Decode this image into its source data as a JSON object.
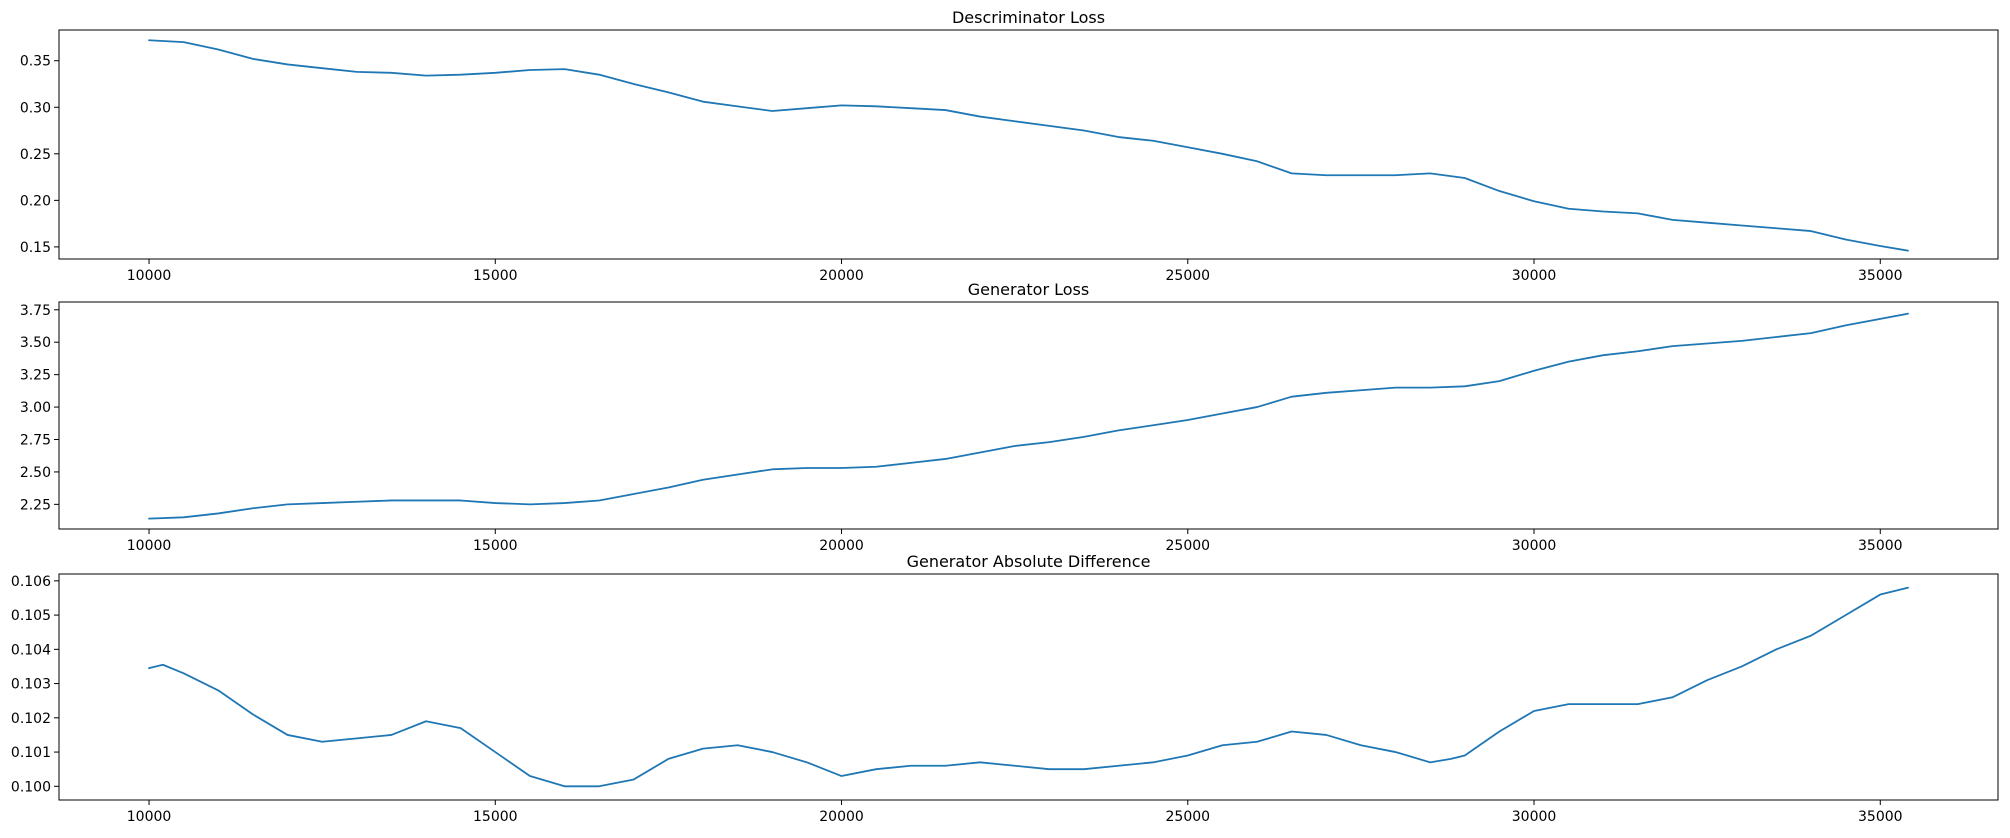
{
  "colors": {
    "series": "#1f77b4",
    "axes": "#000000",
    "background": "#ffffff"
  },
  "chart_data": [
    {
      "type": "line",
      "title": "Descriminator Loss",
      "xlabel": "",
      "ylabel": "",
      "xlim": [
        8700,
        36700
      ],
      "ylim": [
        0.137,
        0.383
      ],
      "xticks": [
        10000,
        15000,
        20000,
        25000,
        30000,
        35000
      ],
      "xtick_labels": [
        "10000",
        "15000",
        "20000",
        "25000",
        "30000",
        "35000"
      ],
      "yticks": [
        0.15,
        0.2,
        0.25,
        0.3,
        0.35
      ],
      "ytick_labels": [
        "0.15",
        "0.20",
        "0.25",
        "0.30",
        "0.35"
      ],
      "grid": false,
      "legend": "none",
      "series": [
        {
          "x": [
            10000,
            10500,
            11000,
            11500,
            12000,
            12500,
            13000,
            13500,
            14000,
            14500,
            15000,
            15500,
            16000,
            16500,
            17000,
            17500,
            18000,
            18500,
            19000,
            19500,
            20000,
            20500,
            21000,
            21500,
            22000,
            22500,
            23000,
            23500,
            24000,
            24500,
            25000,
            25500,
            26000,
            26500,
            27000,
            27500,
            28000,
            28500,
            29000,
            29500,
            30000,
            30500,
            31000,
            31500,
            32000,
            32500,
            33000,
            33500,
            34000,
            34500,
            35000,
            35400
          ],
          "values": [
            0.372,
            0.37,
            0.362,
            0.352,
            0.346,
            0.342,
            0.338,
            0.337,
            0.334,
            0.335,
            0.337,
            0.34,
            0.341,
            0.335,
            0.325,
            0.316,
            0.306,
            0.301,
            0.296,
            0.299,
            0.302,
            0.301,
            0.299,
            0.297,
            0.29,
            0.285,
            0.28,
            0.275,
            0.268,
            0.264,
            0.257,
            0.25,
            0.242,
            0.229,
            0.227,
            0.227,
            0.227,
            0.229,
            0.224,
            0.21,
            0.199,
            0.191,
            0.188,
            0.186,
            0.179,
            0.176,
            0.173,
            0.17,
            0.167,
            0.158,
            0.151,
            0.146
          ]
        }
      ]
    },
    {
      "type": "line",
      "title": "Generator Loss",
      "xlabel": "",
      "ylabel": "",
      "xlim": [
        8700,
        36700
      ],
      "ylim": [
        2.06,
        3.81
      ],
      "xticks": [
        10000,
        15000,
        20000,
        25000,
        30000,
        35000
      ],
      "xtick_labels": [
        "10000",
        "15000",
        "20000",
        "25000",
        "30000",
        "35000"
      ],
      "yticks": [
        2.25,
        2.5,
        2.75,
        3.0,
        3.25,
        3.5,
        3.75
      ],
      "ytick_labels": [
        "2.25",
        "2.50",
        "2.75",
        "3.00",
        "3.25",
        "3.50",
        "3.75"
      ],
      "grid": false,
      "legend": "none",
      "series": [
        {
          "x": [
            10000,
            10500,
            11000,
            11500,
            12000,
            12500,
            13000,
            13500,
            14000,
            14500,
            15000,
            15500,
            16000,
            16500,
            17000,
            17500,
            18000,
            18500,
            19000,
            19500,
            20000,
            20500,
            21000,
            21500,
            22000,
            22500,
            23000,
            23500,
            24000,
            24500,
            25000,
            25500,
            26000,
            26500,
            27000,
            27500,
            28000,
            28500,
            29000,
            29500,
            30000,
            30500,
            31000,
            31500,
            32000,
            32500,
            33000,
            33500,
            34000,
            34500,
            35000,
            35400
          ],
          "values": [
            2.14,
            2.15,
            2.18,
            2.22,
            2.25,
            2.26,
            2.27,
            2.28,
            2.28,
            2.28,
            2.26,
            2.25,
            2.26,
            2.28,
            2.33,
            2.38,
            2.44,
            2.48,
            2.52,
            2.53,
            2.53,
            2.54,
            2.57,
            2.6,
            2.65,
            2.7,
            2.73,
            2.77,
            2.82,
            2.86,
            2.9,
            2.95,
            3.0,
            3.08,
            3.11,
            3.13,
            3.15,
            3.15,
            3.16,
            3.2,
            3.28,
            3.35,
            3.4,
            3.43,
            3.47,
            3.49,
            3.51,
            3.54,
            3.57,
            3.63,
            3.68,
            3.72
          ]
        }
      ]
    },
    {
      "type": "line",
      "title": "Generator Absolute Difference",
      "xlabel": "",
      "ylabel": "",
      "xlim": [
        8700,
        36700
      ],
      "ylim": [
        0.0996,
        0.1062
      ],
      "xticks": [
        10000,
        15000,
        20000,
        25000,
        30000,
        35000
      ],
      "xtick_labels": [
        "10000",
        "15000",
        "20000",
        "25000",
        "30000",
        "35000"
      ],
      "yticks": [
        0.1,
        0.101,
        0.102,
        0.103,
        0.104,
        0.105,
        0.106
      ],
      "ytick_labels": [
        "0.100",
        "0.101",
        "0.102",
        "0.103",
        "0.104",
        "0.105",
        "0.106"
      ],
      "grid": false,
      "legend": "none",
      "series": [
        {
          "x": [
            10000,
            10200,
            10500,
            11000,
            11500,
            12000,
            12500,
            13000,
            13500,
            14000,
            14500,
            15000,
            15500,
            16000,
            16500,
            17000,
            17500,
            18000,
            18500,
            19000,
            19500,
            20000,
            20500,
            21000,
            21500,
            22000,
            22500,
            23000,
            23500,
            24000,
            24500,
            25000,
            25500,
            26000,
            26500,
            27000,
            27500,
            28000,
            28500,
            28800,
            29000,
            29500,
            30000,
            30500,
            31000,
            31500,
            32000,
            32500,
            33000,
            33500,
            34000,
            34500,
            35000,
            35400
          ],
          "values": [
            0.10345,
            0.10355,
            0.1033,
            0.1028,
            0.1021,
            0.1015,
            0.1013,
            0.1014,
            0.1015,
            0.1019,
            0.1017,
            0.101,
            0.1003,
            0.1,
            0.1,
            0.1002,
            0.1008,
            0.1011,
            0.1012,
            0.101,
            0.1007,
            0.1003,
            0.1005,
            0.1006,
            0.1006,
            0.1007,
            0.1006,
            0.1005,
            0.1005,
            0.1006,
            0.1007,
            0.1009,
            0.1012,
            0.1013,
            0.1016,
            0.1015,
            0.1012,
            0.101,
            0.1007,
            0.1008,
            0.1009,
            0.1016,
            0.1022,
            0.1024,
            0.1024,
            0.1024,
            0.1026,
            0.1031,
            0.1035,
            0.104,
            0.1044,
            0.105,
            0.1056,
            0.1058
          ]
        }
      ]
    }
  ]
}
